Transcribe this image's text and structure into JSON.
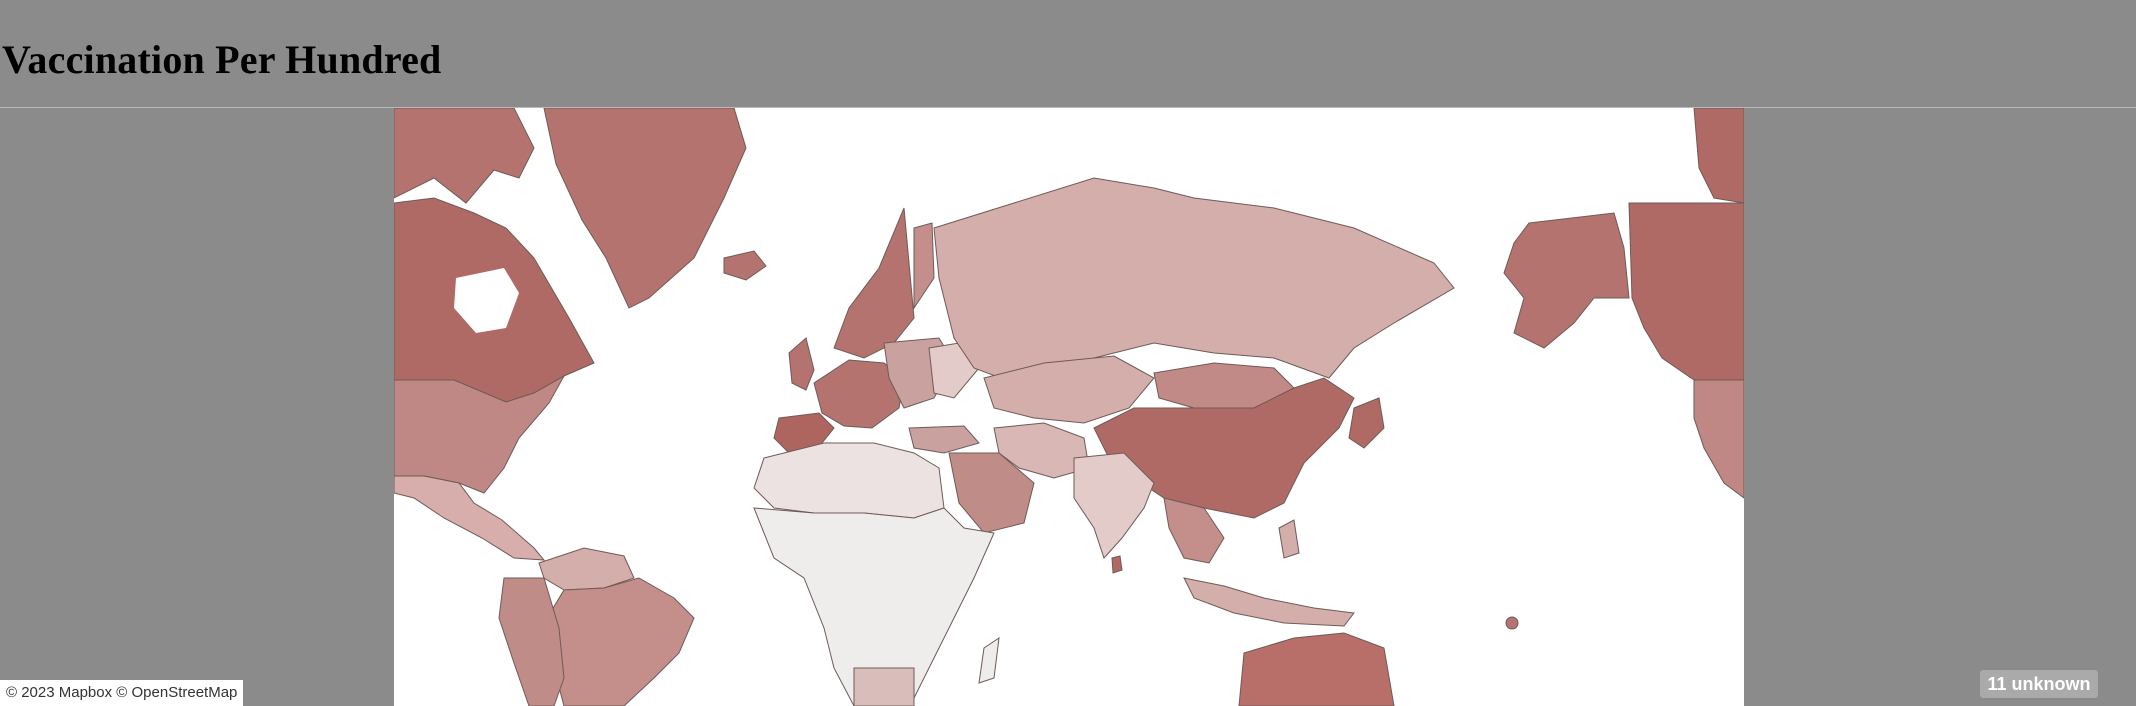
{
  "page": {
    "title": "Vaccination Per Hundred"
  },
  "map": {
    "projection": "Web Mercator",
    "color_scale": {
      "low": "#ebe9e9",
      "high": "#b06a66"
    },
    "colors": {
      "high": "#b5736f",
      "medium_high": "#c48f8b",
      "medium": "#d4aeab",
      "medium_low": "#e1c8c6",
      "low": "#eeeeee",
      "outline": "#6f5a57"
    }
  },
  "attribution": "© 2023 Mapbox © OpenStreetMap",
  "unknown_badge": "11 unknown"
}
